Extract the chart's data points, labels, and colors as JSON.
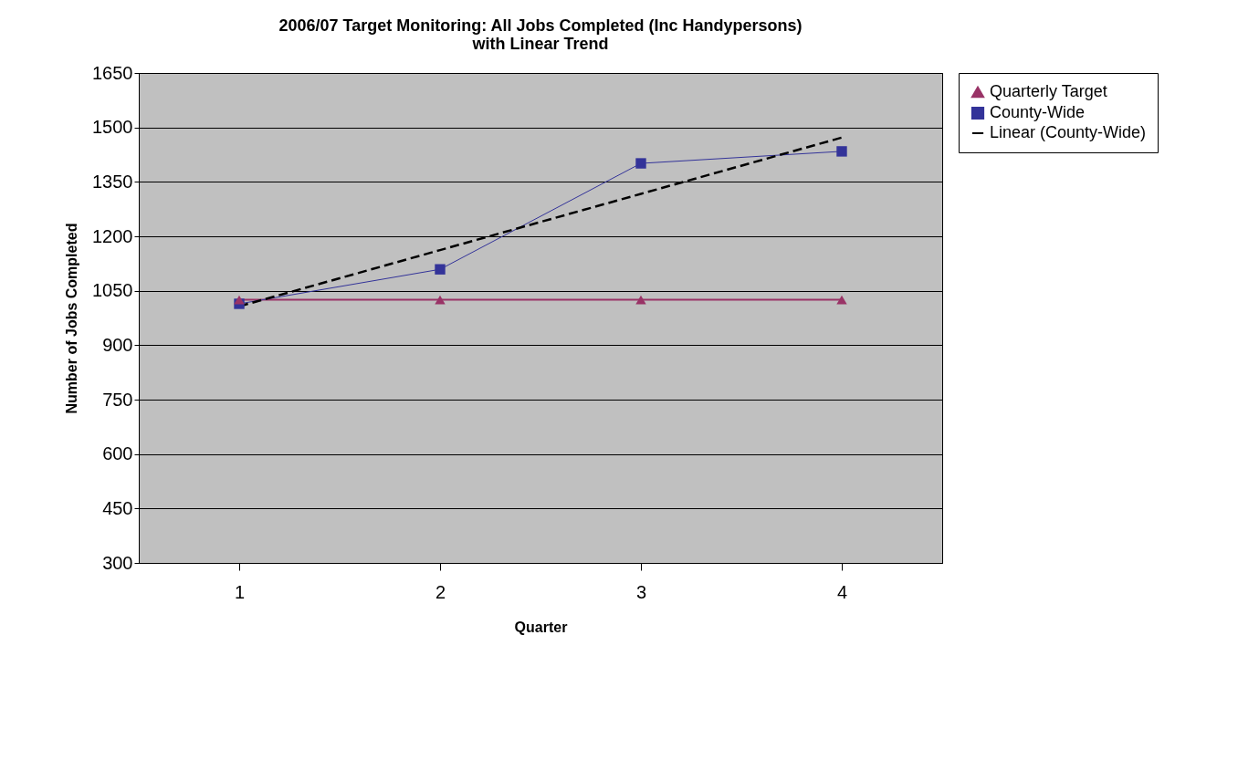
{
  "chart_data": {
    "type": "line",
    "title": [
      "2006/07 Target Monitoring: All Jobs Completed (Inc Handypersons)",
      "with Linear Trend"
    ],
    "xlabel": "Quarter",
    "ylabel": "Number of Jobs Completed",
    "categories": [
      "1",
      "2",
      "3",
      "4"
    ],
    "series": [
      {
        "name": "Quarterly Target",
        "color": "#993366",
        "values": [
          1025,
          1025,
          1025,
          1025
        ],
        "marker": "triangle",
        "line_style": "solid"
      },
      {
        "name": "County-Wide",
        "color": "#333399",
        "values": [
          1014,
          1109,
          1401,
          1434
        ],
        "marker": "square",
        "line_style": "solid"
      },
      {
        "name": "Linear (County-Wide)",
        "color": "#000000",
        "values": [
          1007,
          1162,
          1317,
          1472
        ],
        "marker": "none",
        "line_style": "dashed"
      }
    ],
    "ylim": [
      300,
      1650
    ],
    "yticks": [
      300,
      450,
      600,
      750,
      900,
      1050,
      1200,
      1350,
      1500,
      1650
    ],
    "grid": "y",
    "legend": "right"
  }
}
